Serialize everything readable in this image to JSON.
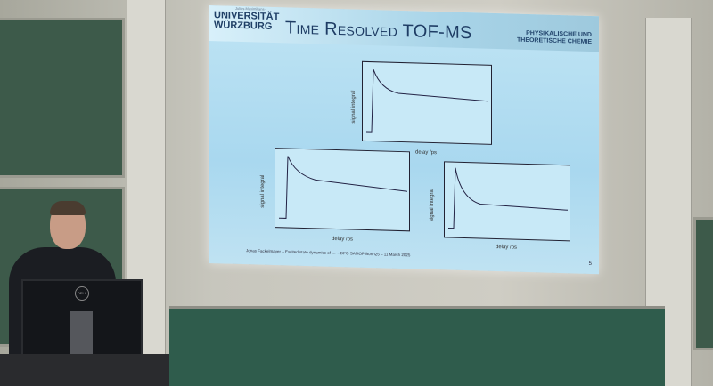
{
  "slide": {
    "university_small": "Julius-Maximilians-",
    "university_line1": "UNIVERSITÄT",
    "university_line2": "WÜRZBURG",
    "title": "Time Resolved TOF-MS",
    "chair_line1": "PHYSIKALISCHE UND",
    "chair_line2": "THEORETISCHE CHEMIE",
    "plots": [
      {
        "ylabel": "signal integral",
        "xlabel": "delay /ps"
      },
      {
        "ylabel": "signal integral",
        "xlabel": "delay /ps"
      },
      {
        "ylabel": "signal integral",
        "xlabel": "delay /ps"
      }
    ],
    "footer": "Jonas Fackelmayer – Excited state dynamics of … – DPG SAMOP Bonn25 – 11 March 2025",
    "page_number": "5"
  },
  "monitor_brand": "DELL"
}
